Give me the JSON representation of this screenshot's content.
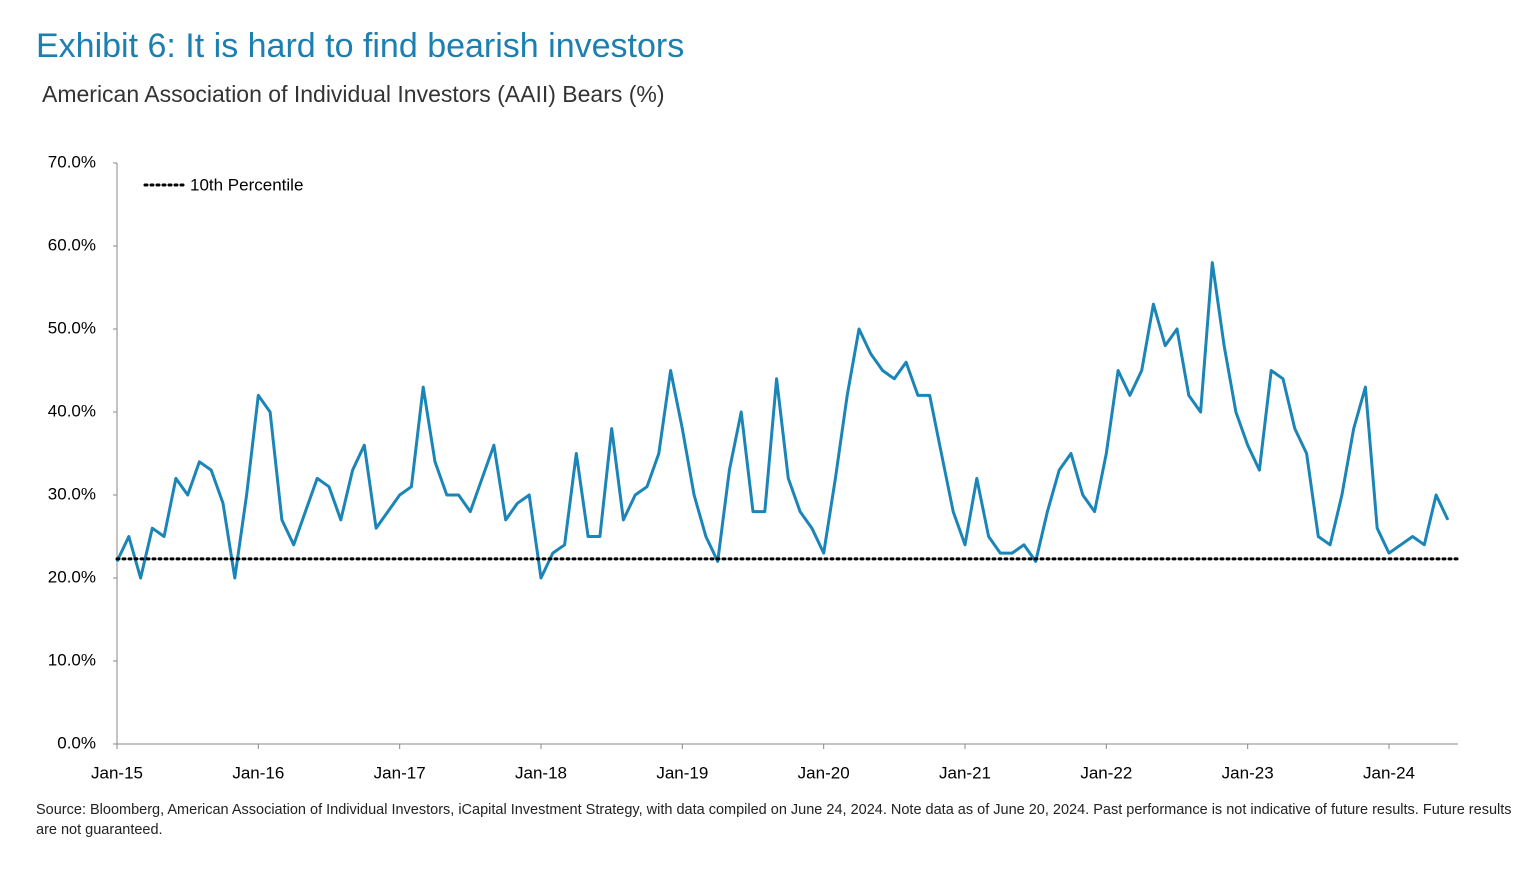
{
  "chart_data": {
    "type": "line",
    "title": "Exhibit 6: It is hard to find bearish investors",
    "subtitle": "American Association of Individual Investors (AAII) Bears (%)",
    "source": "Source: Bloomberg, American Association of Individual Investors, iCapital Investment Strategy, with data compiled on June 24, 2024. Note data as of June 20, 2024. Past performance is not indicative of future results. Future results are not guaranteed.",
    "x": [
      "Jan-15",
      "Feb-15",
      "Mar-15",
      "Apr-15",
      "May-15",
      "Jun-15",
      "Jul-15",
      "Aug-15",
      "Sep-15",
      "Oct-15",
      "Nov-15",
      "Dec-15",
      "Jan-16",
      "Feb-16",
      "Mar-16",
      "Apr-16",
      "May-16",
      "Jun-16",
      "Jul-16",
      "Aug-16",
      "Sep-16",
      "Oct-16",
      "Nov-16",
      "Dec-16",
      "Jan-17",
      "Feb-17",
      "Mar-17",
      "Apr-17",
      "May-17",
      "Jun-17",
      "Jul-17",
      "Aug-17",
      "Sep-17",
      "Oct-17",
      "Nov-17",
      "Dec-17",
      "Jan-18",
      "Feb-18",
      "Mar-18",
      "Apr-18",
      "May-18",
      "Jun-18",
      "Jul-18",
      "Aug-18",
      "Sep-18",
      "Oct-18",
      "Nov-18",
      "Dec-18",
      "Jan-19",
      "Feb-19",
      "Mar-19",
      "Apr-19",
      "May-19",
      "Jun-19",
      "Jul-19",
      "Aug-19",
      "Sep-19",
      "Oct-19",
      "Nov-19",
      "Dec-19",
      "Jan-20",
      "Feb-20",
      "Mar-20",
      "Apr-20",
      "May-20",
      "Jun-20",
      "Jul-20",
      "Aug-20",
      "Sep-20",
      "Oct-20",
      "Nov-20",
      "Dec-20",
      "Jan-21",
      "Feb-21",
      "Mar-21",
      "Apr-21",
      "May-21",
      "Jun-21",
      "Jul-21",
      "Aug-21",
      "Sep-21",
      "Oct-21",
      "Nov-21",
      "Dec-21",
      "Jan-22",
      "Feb-22",
      "Mar-22",
      "Apr-22",
      "May-22",
      "Jun-22",
      "Jul-22",
      "Aug-22",
      "Sep-22",
      "Oct-22",
      "Nov-22",
      "Dec-22",
      "Jan-23",
      "Feb-23",
      "Mar-23",
      "Apr-23",
      "May-23",
      "Jun-23",
      "Jul-23",
      "Aug-23",
      "Sep-23",
      "Oct-23",
      "Nov-23",
      "Dec-23",
      "Jan-24",
      "Feb-24",
      "Mar-24",
      "Apr-24",
      "May-24",
      "Jun-24"
    ],
    "series": [
      {
        "name": "AAII Bears",
        "color": "#1b85b8",
        "values": [
          22,
          25,
          20,
          26,
          25,
          32,
          30,
          34,
          33,
          29,
          20,
          30,
          42,
          40,
          27,
          24,
          28,
          32,
          31,
          27,
          33,
          36,
          26,
          28,
          30,
          31,
          43,
          34,
          30,
          30,
          28,
          32,
          36,
          27,
          29,
          30,
          20,
          23,
          24,
          35,
          25,
          25,
          38,
          27,
          30,
          31,
          35,
          45,
          38,
          30,
          25,
          22,
          33,
          40,
          28,
          28,
          44,
          32,
          28,
          26,
          23,
          32,
          42,
          50,
          47,
          45,
          44,
          46,
          42,
          42,
          35,
          28,
          24,
          32,
          25,
          23,
          23,
          24,
          22,
          28,
          33,
          35,
          30,
          28,
          35,
          45,
          42,
          45,
          53,
          48,
          50,
          42,
          40,
          58,
          48,
          40,
          36,
          33,
          45,
          44,
          38,
          35,
          25,
          24,
          30,
          38,
          43,
          26,
          23,
          24,
          25,
          24,
          30,
          27
        ]
      }
    ],
    "reference_line": {
      "name": "10th Percentile",
      "value": 22.3,
      "color": "#000000"
    },
    "xticks": [
      "Jan-15",
      "Jan-16",
      "Jan-17",
      "Jan-18",
      "Jan-19",
      "Jan-20",
      "Jan-21",
      "Jan-22",
      "Jan-23",
      "Jan-24"
    ],
    "ylim": [
      0,
      70
    ],
    "yticks": [
      {
        "value": 0,
        "label": "0.0%"
      },
      {
        "value": 10,
        "label": "10.0%"
      },
      {
        "value": 20,
        "label": "20.0%"
      },
      {
        "value": 30,
        "label": "30.0%"
      },
      {
        "value": 40,
        "label": "40.0%"
      },
      {
        "value": 50,
        "label": "50.0%"
      },
      {
        "value": 60,
        "label": "60.0%"
      },
      {
        "value": 70,
        "label": "70.0%"
      }
    ],
    "grid": false
  }
}
